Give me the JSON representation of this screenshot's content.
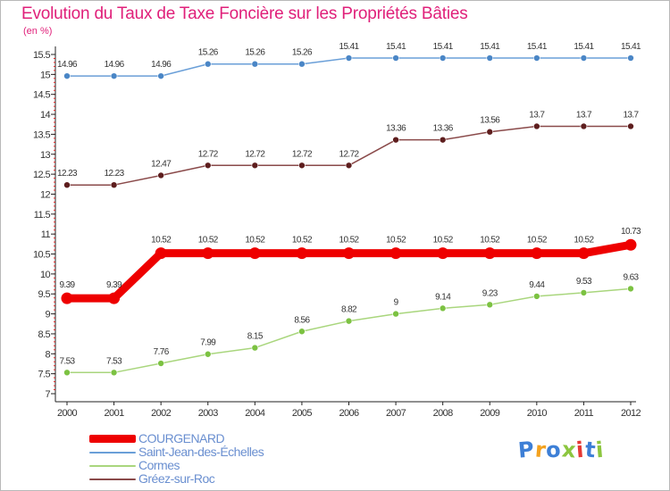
{
  "title": "Evolution du Taux de Taxe Foncière sur les Propriétés Bâties",
  "unit_label": "(en %)",
  "logo": {
    "text": "Proxiti",
    "letters": [
      "P",
      "r",
      "o",
      "x",
      "i",
      "t",
      "i"
    ],
    "colors": [
      "#3d7fd6",
      "#f4a21f",
      "#3d7fd6",
      "#8cc63f",
      "#e53935",
      "#3d7fd6",
      "#8cc63f"
    ]
  },
  "chart_data": {
    "type": "line",
    "title": "Evolution du Taux de Taxe Foncière sur les Propriétés Bâties",
    "xlabel": "",
    "ylabel": "(en %)",
    "x": [
      "2000",
      "2001",
      "2002",
      "2003",
      "2004",
      "2005",
      "2006",
      "2007",
      "2008",
      "2009",
      "2010",
      "2011",
      "2012"
    ],
    "ylim": [
      7,
      15.5
    ],
    "yticks": [
      "7",
      "7.5",
      "8",
      "8.5",
      "9",
      "9.5",
      "10",
      "10.5",
      "11",
      "11.5",
      "12",
      "12.5",
      "13",
      "13.5",
      "14",
      "14.5",
      "15",
      "15.5"
    ],
    "grid": false,
    "legend_position": "bottom-left",
    "series": [
      {
        "name": "Saint-Jean-des-Échelles",
        "color": "#6a9fd8",
        "marker": "#4a86c6",
        "emphasis": false,
        "values": [
          14.96,
          14.96,
          14.96,
          15.26,
          15.26,
          15.26,
          15.41,
          15.41,
          15.41,
          15.41,
          15.41,
          15.41,
          15.41
        ],
        "labels": [
          "14.96",
          "14.96",
          "14.96",
          "15.26",
          "15.26",
          "15.26",
          "15.41",
          "15.41",
          "15.41",
          "15.41",
          "15.41",
          "15.41",
          "15.41"
        ]
      },
      {
        "name": "Gréez-sur-Roc",
        "color": "#8a4a4a",
        "marker": "#5e1e1e",
        "emphasis": false,
        "values": [
          12.23,
          12.23,
          12.47,
          12.72,
          12.72,
          12.72,
          12.72,
          13.36,
          13.36,
          13.56,
          13.7,
          13.7,
          13.7
        ],
        "labels": [
          "12.23",
          "12.23",
          "12.47",
          "12.72",
          "12.72",
          "12.72",
          "12.72",
          "13.36",
          "13.36",
          "13.56",
          "13.7",
          "13.7",
          "13.7"
        ]
      },
      {
        "name": "COURGENARD",
        "color": "#ee0000",
        "marker": "#ee0000",
        "emphasis": true,
        "values": [
          9.39,
          9.39,
          10.52,
          10.52,
          10.52,
          10.52,
          10.52,
          10.52,
          10.52,
          10.52,
          10.52,
          10.52,
          10.73
        ],
        "labels": [
          "9.39",
          "9.39",
          "10.52",
          "10.52",
          "10.52",
          "10.52",
          "10.52",
          "10.52",
          "10.52",
          "10.52",
          "10.52",
          "10.52",
          "10.73"
        ]
      },
      {
        "name": "Cormes",
        "color": "#a9d67d",
        "marker": "#7cc242",
        "emphasis": false,
        "values": [
          7.53,
          7.53,
          7.76,
          7.99,
          8.15,
          8.56,
          8.82,
          9.0,
          9.14,
          9.23,
          9.44,
          9.53,
          9.63
        ],
        "labels": [
          "7.53",
          "7.53",
          "7.76",
          "7.99",
          "8.15",
          "8.56",
          "8.82",
          "9",
          "9.14",
          "9.23",
          "9.44",
          "9.53",
          "9.63"
        ]
      }
    ],
    "legend": [
      {
        "name": "COURGENARD",
        "color": "#ee0000",
        "emphasis": true
      },
      {
        "name": "Saint-Jean-des-Échelles",
        "color": "#6a9fd8",
        "emphasis": false
      },
      {
        "name": "Cormes",
        "color": "#a9d67d",
        "emphasis": false
      },
      {
        "name": "Gréez-sur-Roc",
        "color": "#8a4a4a",
        "emphasis": false
      }
    ]
  }
}
